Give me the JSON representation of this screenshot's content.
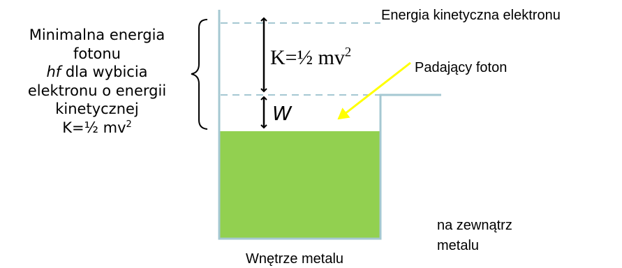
{
  "labels": {
    "kinetic_energy_level": "Energia kinetyczna elektronu",
    "incident_photon": "Padający foton",
    "work_function_symbol": "W",
    "outside_metal_line1": "na zewnątrz",
    "outside_metal_line2": "metalu",
    "metal_interior": "Wnętrze metalu"
  },
  "kinetic_formula": {
    "prefix": "K=½ mv",
    "exponent": "2"
  },
  "min_energy_text": {
    "line1": "Minimalna energia",
    "line2": "fotonu",
    "line3_italic": "hf",
    "line3_rest": " dla wybicia",
    "line4": "elektronu o energii",
    "line5": "kinetycznej",
    "line6_prefix": "K=½ mv",
    "line6_exponent": "2"
  },
  "colors": {
    "metal_fill": "#92d050",
    "well_outline": "#a5c8d2",
    "dashed_level": "#a5c8d2",
    "photon_arrow": "#ffff00",
    "arrows": "#000000"
  }
}
